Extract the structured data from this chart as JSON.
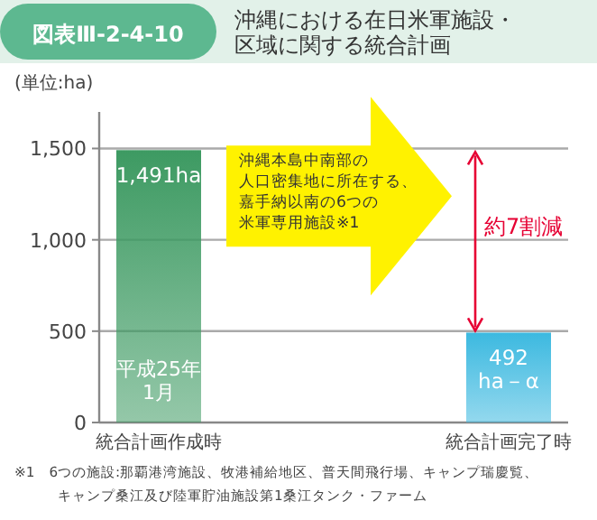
{
  "chart_data": {
    "type": "bar",
    "title": "沖縄における在日米軍施設・区域に関する統合計画",
    "ylabel": "(単位:ha)",
    "categories": [
      "統合計画作成時",
      "統合計画完了時"
    ],
    "values": [
      1491,
      492
    ],
    "colors": [
      "#3d9a62",
      "#3cb9e0"
    ],
    "value_labels": [
      "1,491ha",
      "492\nha－α"
    ],
    "ylim": [
      0,
      1700
    ],
    "yticks": [
      0,
      500,
      {
        "value": 1000,
        "label": "1,000"
      },
      {
        "value": 1500,
        "label": "1,500"
      }
    ],
    "grid": "y",
    "annotations": [
      "図表Ⅲ-2-4-10",
      "平成25年\n1月",
      "沖縄本島中南部の人口密集地に所在する、嘉手納以南の6つの米軍専用施設※1",
      "約7割減",
      "※1　6つの施設:那覇港湾施設、牧港補給地区、普天間飛行場、キャンプ瑞慶覧、キャンプ桑江及び陸軍貯油施設第1桑江タンク・ファーム"
    ]
  }
}
